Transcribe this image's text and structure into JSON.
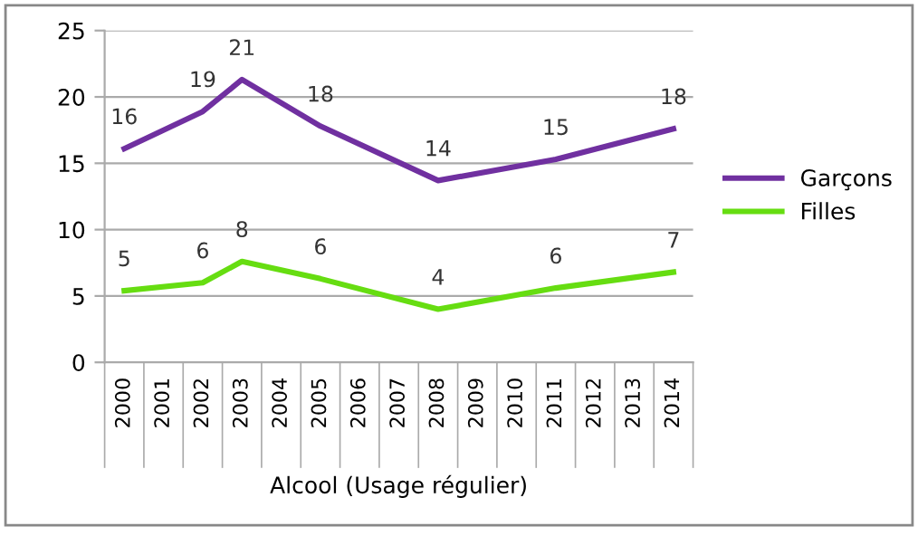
{
  "chart_data": {
    "type": "line",
    "xlabel": "Alcool (Usage régulier)",
    "categories": [
      "2000",
      "2001",
      "2002",
      "2003",
      "2004",
      "2005",
      "2006",
      "2007",
      "2008",
      "2009",
      "2010",
      "2011",
      "2012",
      "2013",
      "2014"
    ],
    "series": [
      {
        "name": "Garçons",
        "color": "#7030a0",
        "values": [
          16.1,
          null,
          18.9,
          21.3,
          null,
          17.8,
          null,
          null,
          13.7,
          null,
          null,
          15.3,
          null,
          null,
          17.6
        ],
        "value_labels": [
          "16",
          null,
          "19",
          "21",
          null,
          "18",
          null,
          null,
          "14",
          null,
          null,
          "15",
          null,
          null,
          "18"
        ]
      },
      {
        "name": "Filles",
        "color": "#66dd11",
        "values": [
          5.4,
          null,
          6.0,
          7.6,
          null,
          6.3,
          null,
          null,
          4.0,
          null,
          null,
          5.6,
          null,
          null,
          6.8
        ],
        "value_labels": [
          "5",
          null,
          "6",
          "8",
          null,
          "6",
          null,
          null,
          "4",
          null,
          null,
          "6",
          null,
          null,
          "7"
        ]
      }
    ],
    "ylim": [
      0,
      25
    ],
    "yticks": [
      0,
      5,
      10,
      15,
      20,
      25
    ],
    "grid": "y",
    "legend": "right",
    "marker": "none",
    "line_style": "solid"
  }
}
